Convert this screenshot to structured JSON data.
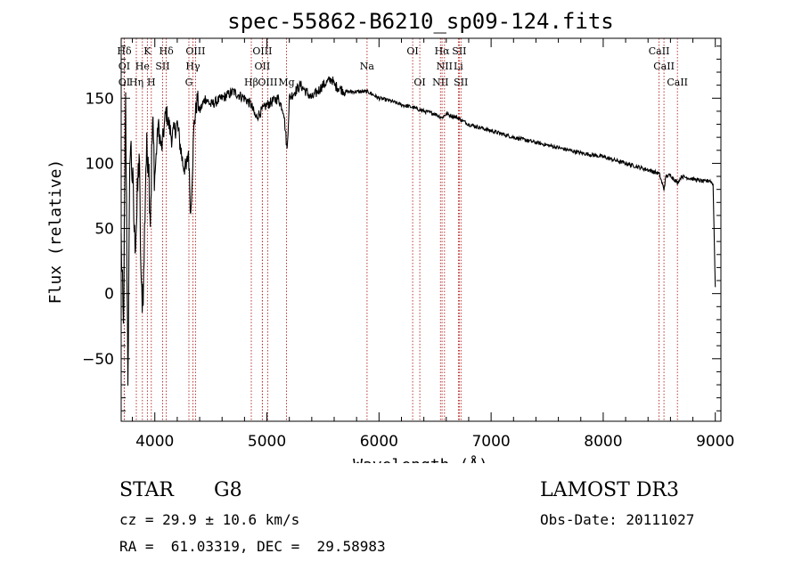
{
  "chart_data": {
    "type": "line",
    "title": "spec-55862-B6210_sp09-124.fits",
    "xlabel": "Wavelength (Å)",
    "ylabel": "Flux (relative)",
    "xlim": [
      3700,
      9050
    ],
    "ylim": [
      -98,
      196
    ],
    "xticks": [
      4000,
      5000,
      6000,
      7000,
      8000,
      9000
    ],
    "yticks": [
      -50,
      0,
      50,
      100,
      150
    ],
    "series": [
      {
        "name": "spectrum",
        "x": [
          3700,
          3720,
          3740,
          3760,
          3780,
          3800,
          3820,
          3840,
          3860,
          3880,
          3900,
          3920,
          3940,
          3960,
          3980,
          4000,
          4030,
          4060,
          4100,
          4150,
          4200,
          4250,
          4280,
          4300,
          4320,
          4350,
          4380,
          4400,
          4450,
          4500,
          4600,
          4700,
          4800,
          4860,
          4900,
          5000,
          5100,
          5150,
          5180,
          5200,
          5300,
          5400,
          5500,
          5580,
          5600,
          5700,
          5800,
          5900,
          6000,
          6100,
          6200,
          6300,
          6400,
          6500,
          6560,
          6600,
          6700,
          6800,
          7000,
          7200,
          7400,
          7600,
          7800,
          8000,
          8200,
          8400,
          8500,
          8542,
          8560,
          8600,
          8662,
          8700,
          8800,
          8900,
          8950,
          8980,
          9000
        ],
        "values": [
          40,
          -30,
          145,
          -60,
          120,
          90,
          40,
          60,
          110,
          -5,
          10,
          100,
          115,
          60,
          130,
          90,
          130,
          110,
          140,
          120,
          130,
          100,
          95,
          110,
          60,
          130,
          150,
          140,
          150,
          145,
          150,
          155,
          150,
          145,
          135,
          145,
          150,
          140,
          110,
          150,
          160,
          150,
          160,
          165,
          160,
          155,
          155,
          155,
          150,
          148,
          145,
          143,
          140,
          138,
          135,
          138,
          135,
          130,
          125,
          120,
          116,
          112,
          108,
          105,
          100,
          95,
          92,
          80,
          90,
          91,
          85,
          90,
          88,
          86,
          87,
          84,
          5
        ]
      }
    ],
    "lines": [
      {
        "label": "Hδ",
        "x": 3728,
        "row": 0
      },
      {
        "label": "K",
        "x": 3934,
        "row": 0
      },
      {
        "label": "Hδ",
        "x": 4102,
        "row": 0
      },
      {
        "label": "OIII",
        "x": 4363,
        "row": 0
      },
      {
        "label": "OIII",
        "x": 4959,
        "row": 0
      },
      {
        "label": "OI",
        "x": 6300,
        "row": 0
      },
      {
        "label": "Hα",
        "x": 6563,
        "row": 0
      },
      {
        "label": "SII",
        "x": 6716,
        "row": 0
      },
      {
        "label": "CaII",
        "x": 8498,
        "row": 0
      },
      {
        "label": "OI",
        "x": 3727,
        "row": 1
      },
      {
        "label": "He",
        "x": 3889,
        "row": 1
      },
      {
        "label": "SII",
        "x": 4070,
        "row": 1
      },
      {
        "label": "Hγ",
        "x": 4340,
        "row": 1
      },
      {
        "label": "OII",
        "x": 4959,
        "row": 1
      },
      {
        "label": "Na",
        "x": 5893,
        "row": 1
      },
      {
        "label": "NII",
        "x": 6584,
        "row": 1
      },
      {
        "label": "Li",
        "x": 6708,
        "row": 1
      },
      {
        "label": "CaII",
        "x": 8542,
        "row": 1
      },
      {
        "label": "OI",
        "x": 3727,
        "row": 2
      },
      {
        "label": "Hη",
        "x": 3835,
        "row": 2
      },
      {
        "label": "H",
        "x": 3969,
        "row": 2
      },
      {
        "label": "G",
        "x": 4304,
        "row": 2
      },
      {
        "label": "Hβ",
        "x": 4861,
        "row": 2
      },
      {
        "label": "OIII",
        "x": 5007,
        "row": 2
      },
      {
        "label": "Mg",
        "x": 5175,
        "row": 2
      },
      {
        "label": "OI",
        "x": 6364,
        "row": 2
      },
      {
        "label": "NII",
        "x": 6548,
        "row": 2
      },
      {
        "label": "SII",
        "x": 6731,
        "row": 2
      },
      {
        "label": "CaII",
        "x": 8662,
        "row": 2
      }
    ]
  },
  "info": {
    "object_class": "STAR",
    "subclass": "G8",
    "survey": "LAMOST DR3",
    "redshift": "cz = 29.9 ± 10.6 km/s",
    "obs_date": "Obs-Date: 20111027",
    "coords": "RA =  61.03319, DEC =  29.58983"
  }
}
